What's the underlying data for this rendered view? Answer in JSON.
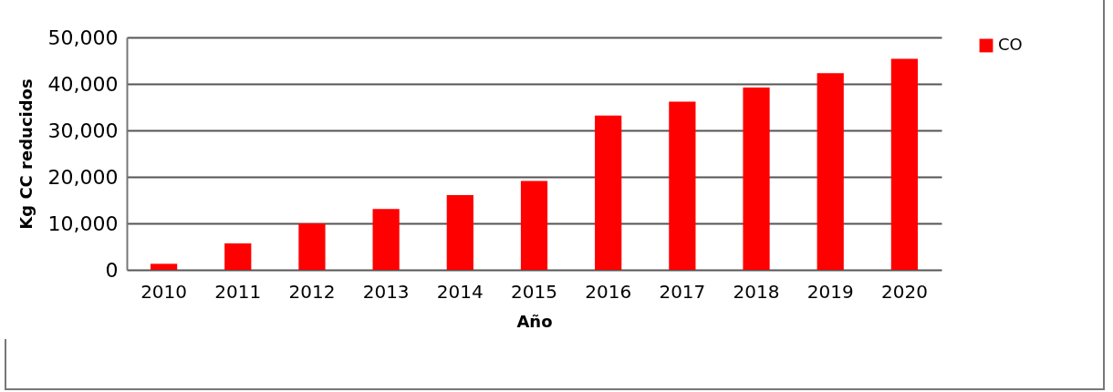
{
  "chart_data": {
    "type": "bar",
    "xlabel": "Año",
    "ylabel": "Kg CC reducidos",
    "categories": [
      "2010",
      "2011",
      "2012",
      "2013",
      "2014",
      "2015",
      "2016",
      "2017",
      "2018",
      "2019",
      "2020"
    ],
    "series": [
      {
        "name": "CO",
        "color": "#ff0000",
        "values": [
          1300,
          5700,
          10000,
          13100,
          16100,
          19100,
          33200,
          36200,
          39200,
          42300,
          45400
        ]
      }
    ],
    "ylim": [
      0,
      50000
    ],
    "yticks": [
      0,
      {
        "value": 10000,
        "label": "10,000"
      },
      {
        "value": 20000,
        "label": "20,000"
      },
      {
        "value": 30000,
        "label": "30,000"
      },
      {
        "value": 40000,
        "label": "40,000"
      },
      {
        "value": 50000,
        "label": "50,000"
      }
    ],
    "grid": "y",
    "legend": "right"
  }
}
